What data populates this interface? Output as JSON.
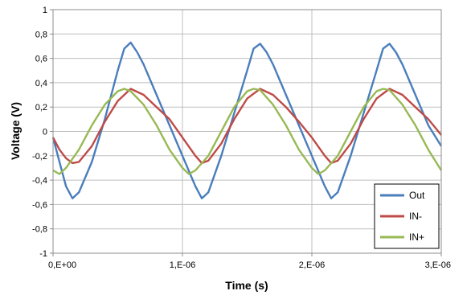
{
  "chart_data": {
    "type": "line",
    "xlabel": "Time (s)",
    "ylabel": "Voltage (V)",
    "xlim": [
      0,
      3e-06
    ],
    "ylim": [
      -1,
      1
    ],
    "grid": true,
    "legend_position": "bottom-right",
    "x_tick_labels": [
      "0,E+00",
      "1,E-06",
      "2,E-06",
      "3,E-06"
    ],
    "y_tick_labels": [
      "1",
      "0,8",
      "0,6",
      "0,4",
      "0,2",
      "0",
      "-0,2",
      "-0,4",
      "-0,6",
      "-0,8",
      "-1"
    ],
    "series": [
      {
        "name": "Out",
        "color": "#4a7ebb",
        "x": [
          0,
          5e-08,
          1e-07,
          1.5e-07,
          2e-07,
          3e-07,
          4e-07,
          5e-07,
          5.5e-07,
          6e-07,
          6.5e-07,
          7e-07,
          8e-07,
          9e-07,
          1e-06,
          1.1e-06,
          1.15e-06,
          1.2e-06,
          1.3e-06,
          1.4e-06,
          1.5e-06,
          1.55e-06,
          1.6e-06,
          1.65e-06,
          1.7e-06,
          1.8e-06,
          1.9e-06,
          2e-06,
          2.1e-06,
          2.15e-06,
          2.2e-06,
          2.3e-06,
          2.4e-06,
          2.5e-06,
          2.55e-06,
          2.6e-06,
          2.65e-06,
          2.7e-06,
          2.8e-06,
          2.9e-06,
          3e-06
        ],
        "y": [
          -0.05,
          -0.25,
          -0.45,
          -0.55,
          -0.5,
          -0.25,
          0.1,
          0.5,
          0.68,
          0.73,
          0.65,
          0.55,
          0.3,
          0.05,
          -0.2,
          -0.45,
          -0.55,
          -0.5,
          -0.2,
          0.15,
          0.5,
          0.68,
          0.72,
          0.65,
          0.55,
          0.3,
          0.05,
          -0.2,
          -0.45,
          -0.55,
          -0.5,
          -0.2,
          0.15,
          0.5,
          0.68,
          0.72,
          0.65,
          0.55,
          0.3,
          0.05,
          -0.12
        ]
      },
      {
        "name": "IN-",
        "color": "#be4b48",
        "x": [
          0,
          5e-08,
          1e-07,
          1.5e-07,
          2e-07,
          3e-07,
          4e-07,
          5e-07,
          6e-07,
          7e-07,
          8e-07,
          9e-07,
          1e-06,
          1.1e-06,
          1.15e-06,
          1.2e-06,
          1.3e-06,
          1.4e-06,
          1.5e-06,
          1.6e-06,
          1.7e-06,
          1.8e-06,
          1.9e-06,
          2e-06,
          2.1e-06,
          2.15e-06,
          2.2e-06,
          2.3e-06,
          2.4e-06,
          2.5e-06,
          2.6e-06,
          2.7e-06,
          2.8e-06,
          2.9e-06,
          3e-06
        ],
        "y": [
          -0.05,
          -0.15,
          -0.22,
          -0.26,
          -0.25,
          -0.12,
          0.08,
          0.25,
          0.35,
          0.3,
          0.2,
          0.1,
          -0.05,
          -0.2,
          -0.26,
          -0.24,
          -0.1,
          0.1,
          0.27,
          0.35,
          0.3,
          0.2,
          0.08,
          -0.05,
          -0.2,
          -0.26,
          -0.24,
          -0.1,
          0.1,
          0.27,
          0.35,
          0.3,
          0.2,
          0.1,
          -0.03
        ]
      },
      {
        "name": "IN+",
        "color": "#98b954",
        "x": [
          0,
          5e-08,
          1e-07,
          2e-07,
          3e-07,
          4e-07,
          5e-07,
          5.5e-07,
          6e-07,
          7e-07,
          8e-07,
          9e-07,
          1e-06,
          1.05e-06,
          1.1e-06,
          1.2e-06,
          1.3e-06,
          1.4e-06,
          1.5e-06,
          1.55e-06,
          1.6e-06,
          1.7e-06,
          1.8e-06,
          1.9e-06,
          2e-06,
          2.05e-06,
          2.1e-06,
          2.2e-06,
          2.3e-06,
          2.4e-06,
          2.5e-06,
          2.55e-06,
          2.6e-06,
          2.7e-06,
          2.8e-06,
          2.9e-06,
          3e-06
        ],
        "y": [
          -0.32,
          -0.35,
          -0.3,
          -0.15,
          0.05,
          0.22,
          0.33,
          0.35,
          0.33,
          0.22,
          0.05,
          -0.15,
          -0.3,
          -0.35,
          -0.32,
          -0.2,
          0.0,
          0.2,
          0.33,
          0.35,
          0.34,
          0.22,
          0.05,
          -0.15,
          -0.3,
          -0.35,
          -0.32,
          -0.2,
          0.0,
          0.2,
          0.33,
          0.35,
          0.34,
          0.22,
          0.05,
          -0.15,
          -0.32
        ]
      }
    ]
  }
}
